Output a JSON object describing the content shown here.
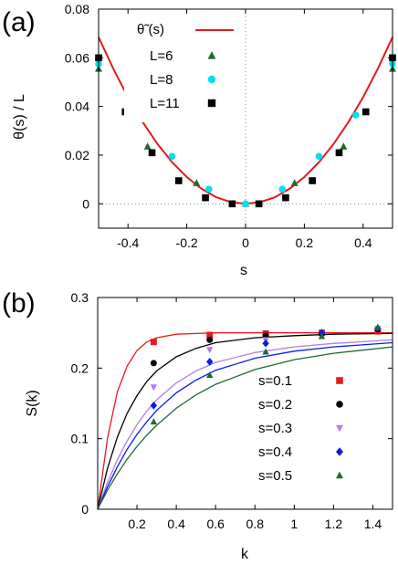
{
  "chart_data": [
    {
      "panel_label": "(a)",
      "type": "line+scatter",
      "xlabel": "s",
      "ylabel": "θ(s) / L",
      "xlim": [
        -0.5,
        0.5
      ],
      "ylim": [
        -0.01,
        0.08
      ],
      "x_ticks": [
        -0.4,
        -0.2,
        0,
        0.2,
        0.4
      ],
      "x_tick_labels": [
        "-0.4",
        "-0.2",
        "0",
        "0.2",
        "0.4"
      ],
      "y_ticks": [
        0,
        0.02,
        0.04,
        0.06,
        0.08
      ],
      "y_tick_labels": [
        "0",
        "0.02",
        "0.04",
        "0.06",
        "0.08"
      ],
      "reference_lines": {
        "x": 0,
        "y": 0,
        "style": "dotted"
      },
      "legend_placement": "top-left",
      "curve": {
        "name": "θ̃ (s)",
        "color": "#e8191c",
        "x": [
          -0.5,
          -0.45,
          -0.4,
          -0.35,
          -0.3,
          -0.25,
          -0.2,
          -0.15,
          -0.1,
          -0.05,
          0,
          0.05,
          0.1,
          0.15,
          0.2,
          0.25,
          0.3,
          0.35,
          0.4,
          0.45,
          0.5
        ],
        "y": [
          0.0685,
          0.0555,
          0.0438,
          0.0336,
          0.0247,
          0.0171,
          0.011,
          0.0062,
          0.0027,
          0.0007,
          0,
          0.0007,
          0.0027,
          0.0062,
          0.011,
          0.0171,
          0.0247,
          0.0336,
          0.0438,
          0.0555,
          0.0685
        ]
      },
      "series": [
        {
          "name": "L=6",
          "marker": "triangle",
          "color": "#1e6b2f",
          "x": [
            -0.5,
            -0.3333,
            -0.1667,
            0,
            0.1667,
            0.3333,
            0.5
          ],
          "y": [
            0.0555,
            0.0235,
            0.0085,
            0,
            0.0085,
            0.0235,
            0.0555
          ]
        },
        {
          "name": "L=8",
          "marker": "circle",
          "color": "#00e0ee",
          "x": [
            -0.5,
            -0.375,
            -0.25,
            -0.125,
            0,
            0.125,
            0.25,
            0.375,
            0.5
          ],
          "y": [
            0.0575,
            0.0365,
            0.0195,
            0.006,
            0,
            0.006,
            0.0195,
            0.0365,
            0.0575
          ]
        },
        {
          "name": "L=11",
          "marker": "square",
          "color": "#000000",
          "x": [
            -0.5,
            -0.4091,
            -0.3182,
            -0.2273,
            -0.1364,
            -0.0455,
            0.0455,
            0.1364,
            0.2273,
            0.3182,
            0.4091,
            0.5
          ],
          "y": [
            0.06,
            0.0378,
            0.021,
            0.0095,
            0.0025,
            0,
            0,
            0.0025,
            0.0095,
            0.021,
            0.0378,
            0.06
          ]
        }
      ]
    },
    {
      "panel_label": "(b)",
      "type": "line+scatter",
      "xlabel": "k",
      "ylabel": "S(k)",
      "xlim": [
        0,
        1.5
      ],
      "ylim": [
        0,
        0.3
      ],
      "x_ticks": [
        0.2,
        0.4,
        0.6,
        0.8,
        1,
        1.2,
        1.4
      ],
      "x_tick_labels": [
        "0.2",
        "0.4",
        "0.6",
        "0.8",
        "1",
        "1.2",
        "1.4"
      ],
      "y_ticks": [
        0,
        0.1,
        0.2,
        0.3
      ],
      "y_tick_labels": [
        "0",
        "0.1",
        "0.2",
        "0.3"
      ],
      "legend_placement": "bottom-right",
      "series": [
        {
          "name": "s=0.1",
          "marker": "square",
          "color": "#e8191c",
          "curve_x": [
            0,
            0.05,
            0.1,
            0.15,
            0.2,
            0.25,
            0.3,
            0.4,
            0.5,
            0.6,
            0.8,
            1.0,
            1.2,
            1.5
          ],
          "curve_y": [
            0,
            0.101,
            0.166,
            0.203,
            0.225,
            0.237,
            0.243,
            0.248,
            0.249,
            0.25,
            0.25,
            0.25,
            0.25,
            0.25
          ],
          "points_x": [
            0.285,
            0.57,
            0.855,
            1.14,
            1.425
          ],
          "points_y": [
            0.237,
            0.247,
            0.249,
            0.25,
            0.252
          ]
        },
        {
          "name": "s=0.2",
          "marker": "circle",
          "color": "#000000",
          "curve_x": [
            0,
            0.05,
            0.1,
            0.15,
            0.2,
            0.25,
            0.3,
            0.4,
            0.5,
            0.6,
            0.8,
            1.0,
            1.2,
            1.5
          ],
          "curve_y": [
            0,
            0.058,
            0.102,
            0.136,
            0.161,
            0.181,
            0.196,
            0.216,
            0.228,
            0.236,
            0.243,
            0.246,
            0.248,
            0.249
          ],
          "points_x": [
            0.285,
            0.57,
            0.855,
            1.14,
            1.425
          ],
          "points_y": [
            0.207,
            0.24,
            0.246,
            0.249,
            0.255
          ]
        },
        {
          "name": "s=0.3",
          "marker": "triangle-down",
          "color": "#b07ee8",
          "curve_x": [
            0,
            0.05,
            0.1,
            0.15,
            0.2,
            0.25,
            0.3,
            0.4,
            0.5,
            0.6,
            0.8,
            1.0,
            1.2,
            1.5
          ],
          "curve_y": [
            0,
            0.038,
            0.07,
            0.097,
            0.12,
            0.139,
            0.155,
            0.179,
            0.196,
            0.208,
            0.222,
            0.23,
            0.235,
            0.24
          ],
          "points_x": [
            0.285,
            0.57,
            0.855,
            1.14,
            1.425
          ],
          "points_y": [
            0.173,
            0.226,
            0.24,
            0.249,
            0.256
          ]
        },
        {
          "name": "s=0.4",
          "marker": "diamond",
          "color": "#0a1de8",
          "curve_x": [
            0,
            0.05,
            0.1,
            0.15,
            0.2,
            0.25,
            0.3,
            0.4,
            0.5,
            0.6,
            0.8,
            1.0,
            1.2,
            1.5
          ],
          "curve_y": [
            0,
            0.032,
            0.06,
            0.085,
            0.106,
            0.124,
            0.14,
            0.165,
            0.183,
            0.197,
            0.214,
            0.224,
            0.23,
            0.236
          ],
          "points_x": [
            0.285,
            0.57,
            0.855,
            1.14,
            1.425
          ],
          "points_y": [
            0.147,
            0.209,
            0.235,
            0.25,
            0.256
          ]
        },
        {
          "name": "s=0.5",
          "marker": "triangle",
          "color": "#1e6b2f",
          "curve_x": [
            0,
            0.05,
            0.1,
            0.15,
            0.2,
            0.25,
            0.3,
            0.4,
            0.5,
            0.6,
            0.8,
            1.0,
            1.2,
            1.5
          ],
          "curve_y": [
            0,
            0.027,
            0.05,
            0.071,
            0.089,
            0.105,
            0.119,
            0.143,
            0.162,
            0.177,
            0.198,
            0.212,
            0.221,
            0.23
          ],
          "points_x": [
            0.285,
            0.57,
            0.855,
            1.14,
            1.425
          ],
          "points_y": [
            0.124,
            0.19,
            0.223,
            0.245,
            0.258
          ]
        }
      ]
    }
  ]
}
